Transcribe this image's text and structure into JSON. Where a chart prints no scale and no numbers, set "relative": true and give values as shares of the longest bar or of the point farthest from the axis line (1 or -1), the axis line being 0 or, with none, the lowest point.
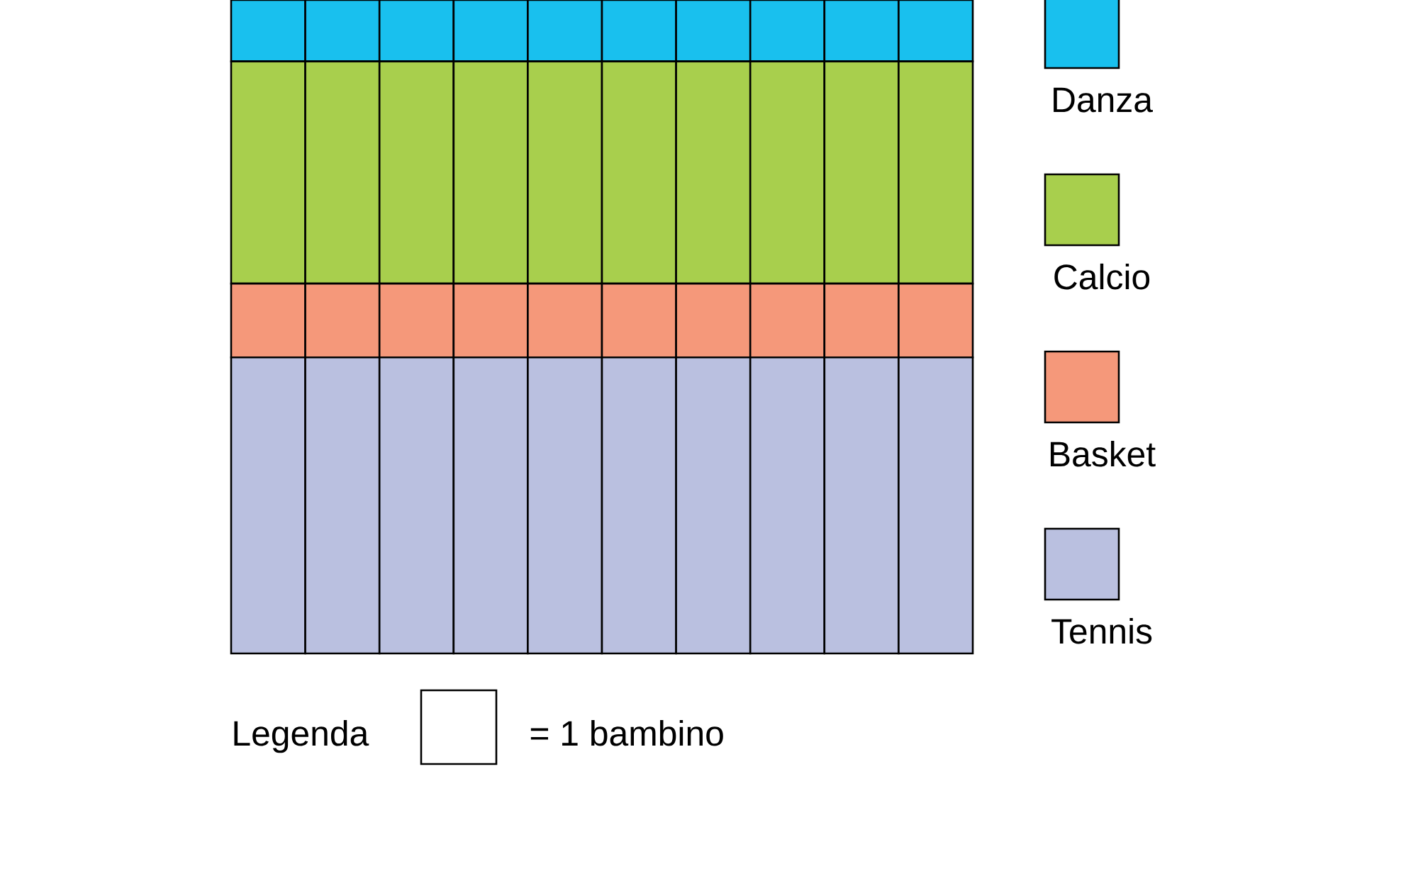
{
  "chart_data": {
    "type": "bar",
    "stacked": true,
    "relative": true,
    "categories": [
      null,
      null,
      null,
      null,
      null,
      null,
      null,
      null,
      null,
      null
    ],
    "series": [
      {
        "name": "Tennis",
        "color": "#bac0e0",
        "values": [
          0.453,
          0.453,
          0.453,
          0.453,
          0.453,
          0.453,
          0.453,
          0.453,
          0.453,
          0.453
        ]
      },
      {
        "name": "Basket",
        "color": "#f5987a",
        "values": [
          0.113,
          0.113,
          0.113,
          0.113,
          0.113,
          0.113,
          0.113,
          0.113,
          0.113,
          0.113
        ]
      },
      {
        "name": "Calcio",
        "color": "#a8cf4d",
        "values": [
          0.34,
          0.34,
          0.34,
          0.34,
          0.34,
          0.34,
          0.34,
          0.34,
          0.34,
          0.34
        ]
      },
      {
        "name": "Danza",
        "color": "#19c0ee",
        "values": [
          0.094,
          0.094,
          0.094,
          0.094,
          0.094,
          0.094,
          0.094,
          0.094,
          0.094,
          0.094
        ]
      }
    ],
    "legend": "right",
    "annotations": [
      "Legenda",
      "= 1 bambino"
    ]
  }
}
